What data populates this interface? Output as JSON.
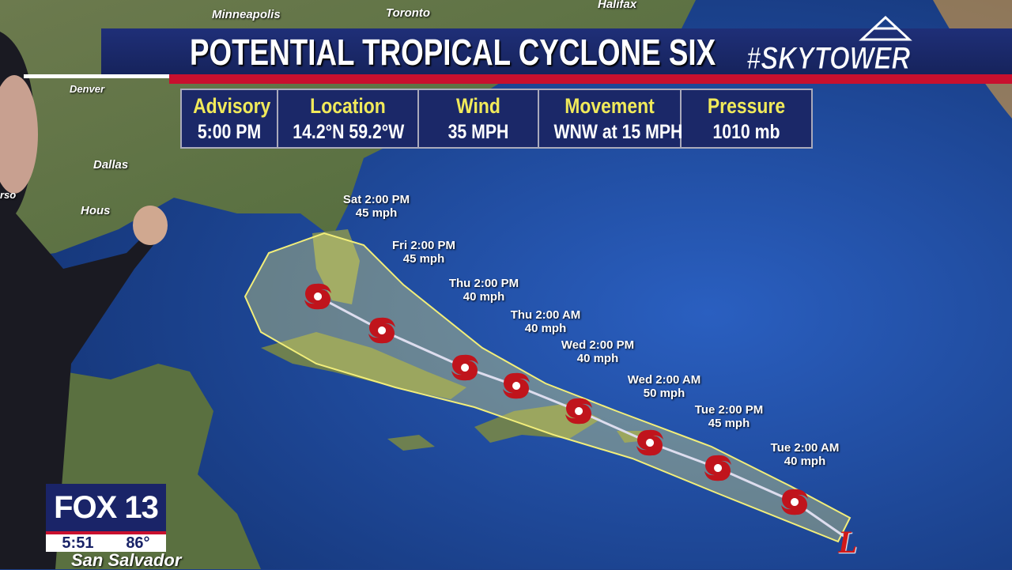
{
  "title": "POTENTIAL TROPICAL CYCLONE SIX",
  "brand": "#SKYTOWER",
  "advisory_table": [
    {
      "header": "Advisory",
      "value": "5:00 PM"
    },
    {
      "header": "Location",
      "value": "14.2°N  59.2°W"
    },
    {
      "header": "Wind",
      "value": "35 MPH"
    },
    {
      "header": "Movement",
      "value": "WNW at 15 MPH"
    },
    {
      "header": "Pressure",
      "value": "1010 mb"
    }
  ],
  "forecast_points": [
    {
      "time": "Tue 2:00 AM",
      "wind": "40 mph"
    },
    {
      "time": "Tue 2:00 PM",
      "wind": "45 mph"
    },
    {
      "time": "Wed 2:00 AM",
      "wind": "50 mph"
    },
    {
      "time": "Wed 2:00 PM",
      "wind": "40 mph"
    },
    {
      "time": "Thu 2:00 AM",
      "wind": "40 mph"
    },
    {
      "time": "Thu 2:00 PM",
      "wind": "40 mph"
    },
    {
      "time": "Fri 2:00 PM",
      "wind": "45 mph"
    },
    {
      "time": "Sat 2:00 PM",
      "wind": "45 mph"
    }
  ],
  "low_marker": "L",
  "cities": [
    "Minneapolis",
    "Toronto",
    "Halifax",
    "Denver",
    "Dallas",
    "Hous",
    "San Salvador",
    "rso"
  ],
  "station": {
    "logo": "FOX 13",
    "time": "5:51",
    "temp": "86°"
  },
  "colors": {
    "banner": "#1f2f78",
    "accent_red": "#c8102e",
    "header_yellow": "#f1ea5a",
    "storm_red": "#c0141c",
    "cone": "#f2ee7a"
  }
}
